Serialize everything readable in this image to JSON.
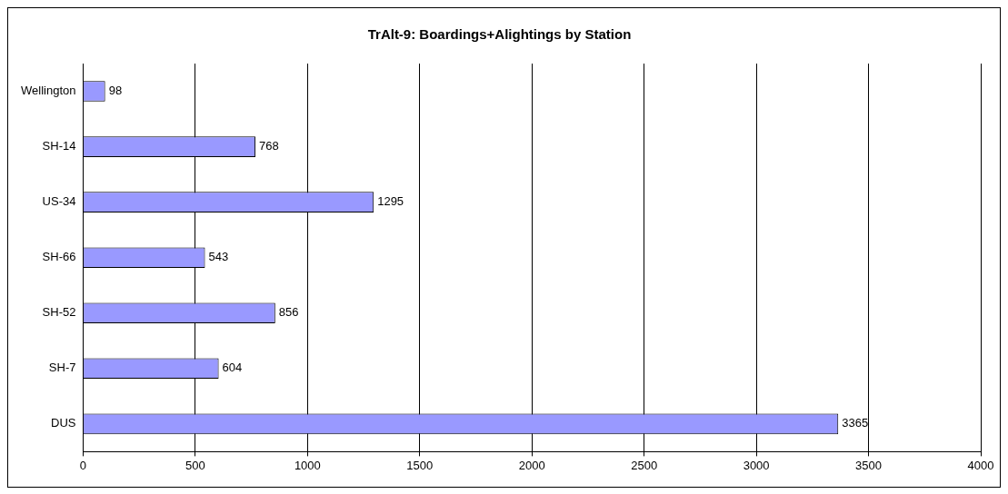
{
  "chart_data": {
    "type": "bar",
    "orientation": "horizontal",
    "title": "TrAlt-9: Boardings+Alightings by Station",
    "categories": [
      "Wellington",
      "SH-14",
      "US-34",
      "SH-66",
      "SH-52",
      "SH-7",
      "DUS"
    ],
    "values": [
      98,
      768,
      1295,
      543,
      856,
      604,
      3365
    ],
    "color": "#9999ff",
    "xlim": [
      0,
      4000
    ],
    "xticks": [
      0,
      500,
      1000,
      1500,
      2000,
      2500,
      3000,
      3500,
      4000
    ],
    "grid": "x",
    "data_labels": true,
    "legend": false
  }
}
